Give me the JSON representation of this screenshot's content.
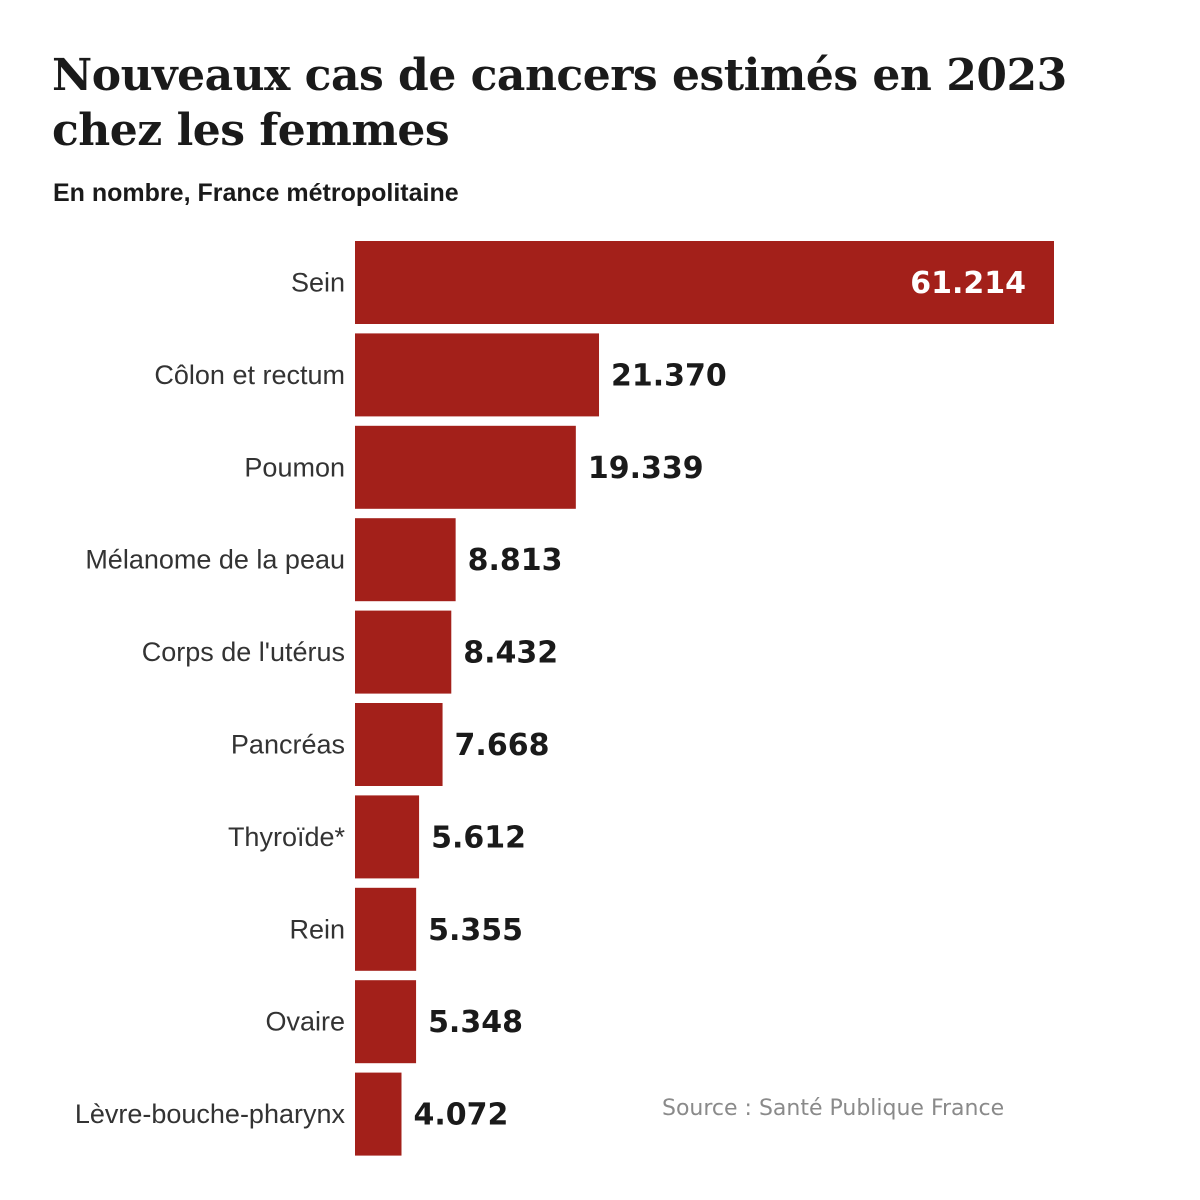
{
  "chart_data": {
    "type": "bar",
    "orientation": "horizontal",
    "title": "Nouveaux cas de cancers estimés en 2023 chez les femmes",
    "subtitle": "En nombre, France métropolitaine",
    "categories": [
      "Sein",
      "Côlon et rectum",
      "Poumon",
      "Mélanome de la peau",
      "Corps de l'utérus",
      "Pancréas",
      "Thyroïde*",
      "Rein",
      "Ovaire",
      "Lèvre-bouche-pharynx"
    ],
    "values": [
      61214,
      21370,
      19339,
      8813,
      8432,
      7668,
      5612,
      5355,
      5348,
      4072
    ],
    "value_labels": [
      "61.214",
      "21.370",
      "19.339",
      "8.813",
      "8.432",
      "7.668",
      "5.612",
      "5.355",
      "5.348",
      "4.072"
    ],
    "xlim": [
      0,
      61214
    ],
    "grid": false,
    "legend": "none",
    "bar_color": "#a3201a",
    "source": "Source : Santé Publique France"
  }
}
